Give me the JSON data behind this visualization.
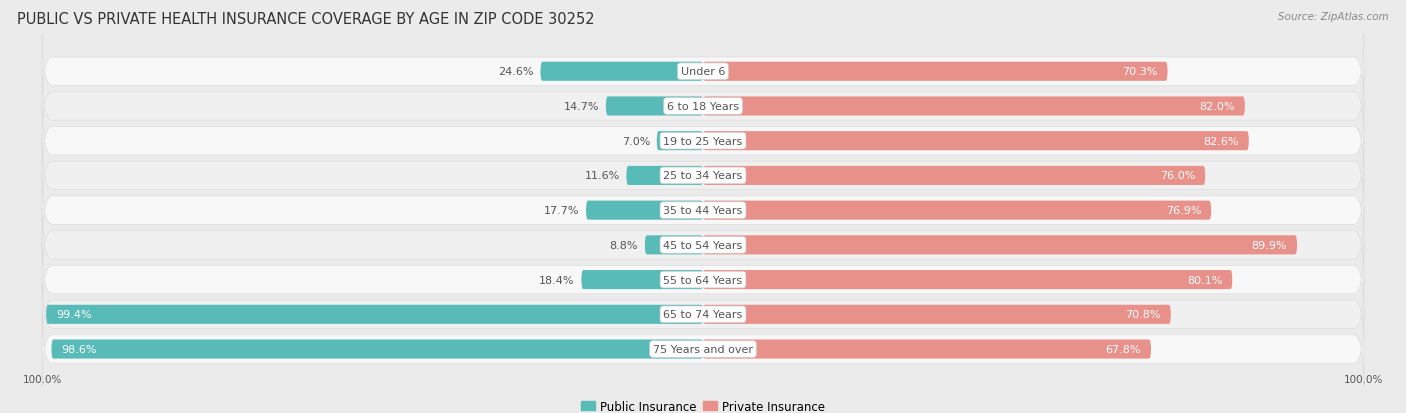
{
  "title": "PUBLIC VS PRIVATE HEALTH INSURANCE COVERAGE BY AGE IN ZIP CODE 30252",
  "source": "Source: ZipAtlas.com",
  "categories": [
    "Under 6",
    "6 to 18 Years",
    "19 to 25 Years",
    "25 to 34 Years",
    "35 to 44 Years",
    "45 to 54 Years",
    "55 to 64 Years",
    "65 to 74 Years",
    "75 Years and over"
  ],
  "public_values": [
    24.6,
    14.7,
    7.0,
    11.6,
    17.7,
    8.8,
    18.4,
    99.4,
    98.6
  ],
  "private_values": [
    70.3,
    82.0,
    82.6,
    76.0,
    76.9,
    89.9,
    80.1,
    70.8,
    67.8
  ],
  "public_color": "#59bbb7",
  "private_color": "#e8918a",
  "bg_color": "#ebebeb",
  "row_color_odd": "#f5f5f5",
  "row_color_even": "#ebebeb",
  "label_dark": "#555555",
  "label_white": "#ffffff",
  "axis_max": 100.0,
  "title_fontsize": 10.5,
  "source_fontsize": 7.5,
  "bar_label_fontsize": 8,
  "category_fontsize": 8,
  "legend_fontsize": 8.5,
  "axis_label_fontsize": 7.5
}
